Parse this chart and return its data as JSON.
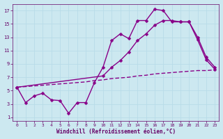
{
  "bg_color": "#cce8f0",
  "line_color": "#880088",
  "grid_color": "#b8dce8",
  "axis_color": "#660066",
  "xlabel": "Windchill (Refroidissement éolien,°C)",
  "xlim": [
    -0.5,
    23.5
  ],
  "ylim": [
    0.5,
    18
  ],
  "xticks": [
    0,
    1,
    2,
    3,
    4,
    5,
    6,
    7,
    8,
    9,
    10,
    11,
    12,
    13,
    14,
    15,
    16,
    17,
    18,
    19,
    20,
    21,
    22,
    23
  ],
  "yticks": [
    1,
    3,
    5,
    7,
    9,
    11,
    13,
    15,
    17
  ],
  "line1_x": [
    0,
    1,
    2,
    3,
    4,
    5,
    6,
    7,
    8,
    9,
    10,
    11,
    12,
    13,
    14,
    15,
    16,
    17,
    18,
    19,
    20,
    21,
    22,
    23
  ],
  "line1_y": [
    5.5,
    3.2,
    4.2,
    4.6,
    3.6,
    3.5,
    1.6,
    3.2,
    3.2,
    6.2,
    8.5,
    12.5,
    13.5,
    12.8,
    15.5,
    15.5,
    17.2,
    17.0,
    15.3,
    15.3,
    15.3,
    12.6,
    9.6,
    8.2
  ],
  "line2_x": [
    0,
    10,
    11,
    12,
    13,
    14,
    15,
    16,
    17,
    18,
    19,
    20,
    21,
    22,
    23
  ],
  "line2_y": [
    5.5,
    7.2,
    8.5,
    9.5,
    10.8,
    12.5,
    13.5,
    14.8,
    15.5,
    15.5,
    15.3,
    15.3,
    13.0,
    10.0,
    8.5
  ],
  "line3_x": [
    0,
    1,
    2,
    3,
    4,
    5,
    6,
    7,
    8,
    9,
    10,
    11,
    12,
    13,
    14,
    15,
    16,
    17,
    18,
    19,
    20,
    21,
    22,
    23
  ],
  "line3_y": [
    5.5,
    5.6,
    5.7,
    5.8,
    5.9,
    6.0,
    6.1,
    6.2,
    6.3,
    6.5,
    6.6,
    6.8,
    6.9,
    7.0,
    7.2,
    7.3,
    7.5,
    7.6,
    7.7,
    7.8,
    7.9,
    8.0,
    8.0,
    8.1
  ],
  "marker_size": 2.5,
  "linewidth": 1.0
}
